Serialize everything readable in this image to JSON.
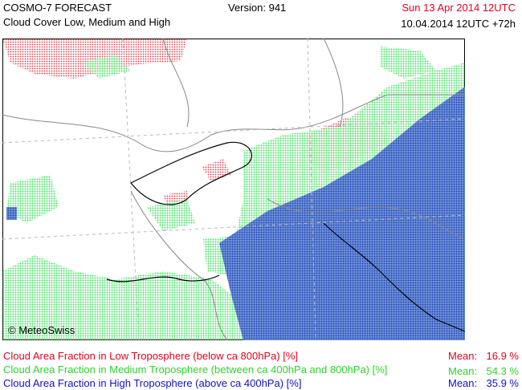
{
  "header": {
    "model": "COSMO-7 FORECAST",
    "product": "Cloud Cover Low, Medium and High",
    "version": "Version: 941",
    "valid_time": "Sun 13 Apr 2014 12UTC",
    "run_time": "10.04.2014 12UTC +72h"
  },
  "map": {
    "copyright": "© MeteoSwiss"
  },
  "legend": [
    {
      "label": "Cloud Area Fraction in Low Troposphere (below ca 800hPa) [%]",
      "mean_label": "Mean:",
      "mean": "16.9 %"
    },
    {
      "label": "Cloud Area Fraction in Medium Troposphere (between ca 400hPa and 800hPa) [%]",
      "mean_label": "Mean:",
      "mean": "54.3 %"
    },
    {
      "label": "Cloud Area Fraction in High Troposphere (above ca 400hPa) [%]",
      "mean_label": "Mean:",
      "mean": "35.9 %"
    }
  ]
}
